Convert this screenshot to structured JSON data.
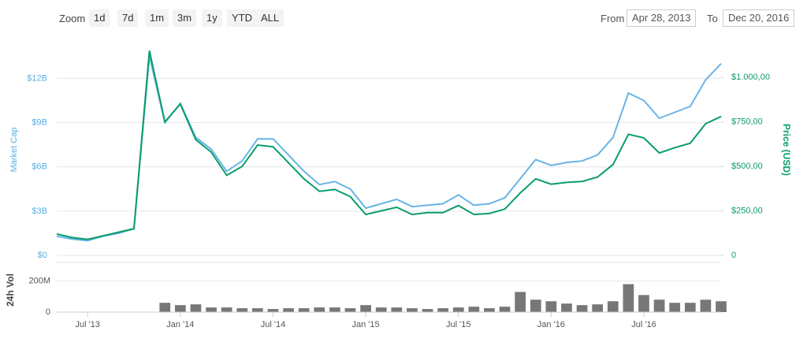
{
  "range_selector": {
    "zoom_label": "Zoom",
    "buttons": [
      "1d",
      "7d",
      "1m",
      "3m",
      "1y",
      "YTD",
      "ALL"
    ],
    "from_label": "From",
    "from_date": "Apr 28, 2013",
    "to_label": "To",
    "to_date": "Dec 20, 2016"
  },
  "chart_data": [
    {
      "type": "line",
      "ylabel": "Market Cap",
      "y2label": "Price (USD)",
      "x": [
        "2013-05",
        "2013-06",
        "2013-07",
        "2013-08",
        "2013-09",
        "2013-10",
        "2013-11",
        "2013-12",
        "2014-01",
        "2014-02",
        "2014-03",
        "2014-04",
        "2014-05",
        "2014-06",
        "2014-07",
        "2014-08",
        "2014-09",
        "2014-10",
        "2014-11",
        "2014-12",
        "2015-01",
        "2015-02",
        "2015-03",
        "2015-04",
        "2015-05",
        "2015-06",
        "2015-07",
        "2015-08",
        "2015-09",
        "2015-10",
        "2015-11",
        "2015-12",
        "2016-01",
        "2016-02",
        "2016-03",
        "2016-04",
        "2016-05",
        "2016-06",
        "2016-07",
        "2016-08",
        "2016-09",
        "2016-10",
        "2016-11",
        "2016-12"
      ],
      "xlim": [
        "2013-05",
        "2016-12"
      ],
      "ylim": [
        0,
        14
      ],
      "yticks": [
        {
          "value": 0,
          "label": "$0"
        },
        {
          "value": 3,
          "label": "$3B"
        },
        {
          "value": 6,
          "label": "$6B"
        },
        {
          "value": 9,
          "label": "$9B"
        },
        {
          "value": 12,
          "label": "$12B"
        }
      ],
      "y2lim": [
        0,
        1160
      ],
      "y2ticks": [
        0,
        {
          "value": 250,
          "label": "$250,00"
        },
        {
          "value": 500,
          "label": "$500,00"
        },
        {
          "value": 750,
          "label": "$750,00"
        },
        {
          "value": 1000,
          "label": "$1.000,00"
        }
      ],
      "grid": true,
      "series": [
        {
          "name": "Market Cap",
          "color": "#67b4e6",
          "axis": "y",
          "values": [
            1.3,
            1.1,
            1.0,
            1.3,
            1.5,
            1.8,
            13.5,
            9.0,
            10.3,
            8.0,
            7.2,
            5.7,
            6.4,
            7.9,
            7.9,
            6.8,
            5.7,
            4.8,
            5.0,
            4.5,
            3.2,
            3.5,
            3.8,
            3.3,
            3.4,
            3.5,
            4.1,
            3.4,
            3.5,
            3.9,
            5.2,
            6.5,
            6.1,
            6.3,
            6.4,
            6.8,
            8.0,
            11.0,
            10.5,
            9.3,
            9.7,
            10.1,
            11.9,
            13.0
          ]
        },
        {
          "name": "Price (USD)",
          "color": "#0a9c6c",
          "axis": "y2",
          "values": [
            120,
            100,
            90,
            110,
            130,
            150,
            1150,
            750,
            850,
            650,
            580,
            450,
            500,
            620,
            610,
            520,
            430,
            360,
            370,
            330,
            230,
            250,
            270,
            230,
            240,
            240,
            280,
            230,
            235,
            260,
            350,
            430,
            400,
            410,
            415,
            440,
            510,
            680,
            660,
            575,
            605,
            630,
            740,
            780
          ]
        }
      ]
    },
    {
      "type": "bar",
      "ylabel": "24h Vol",
      "x": [
        "2013-05",
        "2013-06",
        "2013-07",
        "2013-08",
        "2013-09",
        "2013-10",
        "2013-11",
        "2013-12",
        "2014-01",
        "2014-02",
        "2014-03",
        "2014-04",
        "2014-05",
        "2014-06",
        "2014-07",
        "2014-08",
        "2014-09",
        "2014-10",
        "2014-11",
        "2014-12",
        "2015-01",
        "2015-02",
        "2015-03",
        "2015-04",
        "2015-05",
        "2015-06",
        "2015-07",
        "2015-08",
        "2015-09",
        "2015-10",
        "2015-11",
        "2015-12",
        "2016-01",
        "2016-02",
        "2016-03",
        "2016-04",
        "2016-05",
        "2016-06",
        "2016-07",
        "2016-08",
        "2016-09",
        "2016-10",
        "2016-11",
        "2016-12"
      ],
      "values": [
        1,
        1,
        1,
        1,
        1,
        1,
        2,
        60,
        45,
        50,
        30,
        30,
        25,
        25,
        20,
        25,
        25,
        30,
        30,
        25,
        45,
        30,
        30,
        25,
        20,
        25,
        30,
        35,
        25,
        35,
        130,
        80,
        70,
        55,
        45,
        50,
        70,
        180,
        110,
        80,
        60,
        60,
        80,
        70
      ],
      "color": "#777777",
      "xlim": [
        "2013-05",
        "2016-12"
      ],
      "ylim": [
        0,
        320
      ],
      "yticks": [
        0,
        {
          "value": 200,
          "label": "200M"
        }
      ],
      "xticks": [
        {
          "value": "2013-07",
          "label": "Jul '13"
        },
        {
          "value": "2014-01",
          "label": "Jan '14"
        },
        {
          "value": "2014-07",
          "label": "Jul '14"
        },
        {
          "value": "2015-01",
          "label": "Jan '15"
        },
        {
          "value": "2015-07",
          "label": "Jul '15"
        },
        {
          "value": "2016-01",
          "label": "Jan '16"
        },
        {
          "value": "2016-07",
          "label": "Jul '16"
        }
      ],
      "grid": true
    }
  ]
}
